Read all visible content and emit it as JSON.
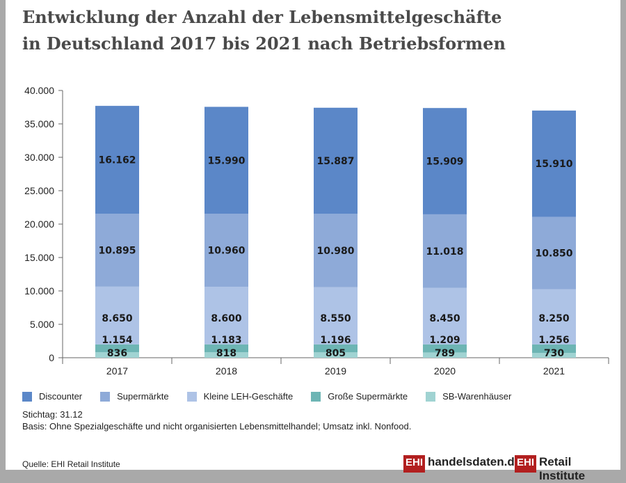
{
  "title_line1": "Entwicklung der Anzahl der Lebensmittelgeschäfte",
  "title_line2": "in Deutschland 2017 bis 2021 nach Betriebsformen",
  "chart_data": {
    "type": "bar",
    "stacked": true,
    "categories": [
      "2017",
      "2018",
      "2019",
      "2020",
      "2021"
    ],
    "ylim": [
      0,
      40000
    ],
    "yticks": [
      0,
      5000,
      10000,
      15000,
      20000,
      25000,
      30000,
      35000,
      40000
    ],
    "ytick_labels": [
      "0",
      "5.000",
      "10.000",
      "15.000",
      "20.000",
      "25.000",
      "30.000",
      "35.000",
      "40.000"
    ],
    "grid": false,
    "legend_position": "bottom",
    "series": [
      {
        "name": "SB-Warenhäuser",
        "color": "#a0d3d2",
        "values": [
          836,
          818,
          805,
          789,
          730
        ],
        "labels": [
          "836",
          "818",
          "805",
          "789",
          "730"
        ]
      },
      {
        "name": "Große Supermärkte",
        "color": "#6db5b4",
        "values": [
          1154,
          1183,
          1196,
          1209,
          1256
        ],
        "labels": [
          "1.154",
          "1.183",
          "1.196",
          "1.209",
          "1.256"
        ]
      },
      {
        "name": "Kleine LEH-Geschäfte",
        "color": "#aec3e6",
        "values": [
          8650,
          8600,
          8550,
          8450,
          8250
        ],
        "labels": [
          "8.650",
          "8.600",
          "8.550",
          "8.450",
          "8.250"
        ]
      },
      {
        "name": "Supermärkte",
        "color": "#8eaad8",
        "values": [
          10895,
          10960,
          10980,
          11018,
          10850
        ],
        "labels": [
          "10.895",
          "10.960",
          "10.980",
          "11.018",
          "10.850"
        ]
      },
      {
        "name": "Discounter",
        "color": "#5b87c8",
        "values": [
          16162,
          15990,
          15887,
          15909,
          15910
        ],
        "labels": [
          "16.162",
          "15.990",
          "15.887",
          "15.909",
          "15.910"
        ]
      }
    ],
    "legend_order": [
      "Discounter",
      "Supermärkte",
      "Kleine LEH-Geschäfte",
      "Große Supermärkte",
      "SB-Warenhäuser"
    ]
  },
  "notes": {
    "stichtag": "Stichtag: 31.12",
    "basis": "Basis: Ohne Spezialgeschäfte und nicht organisierten Lebensmittelhandel; Umsatz inkl. Nonfood.",
    "quelle": "Quelle: EHI Retail Institute"
  },
  "logos": {
    "ehi": "EHI",
    "handelsdaten": "handelsdaten.de",
    "retail": "Retail Institute"
  }
}
